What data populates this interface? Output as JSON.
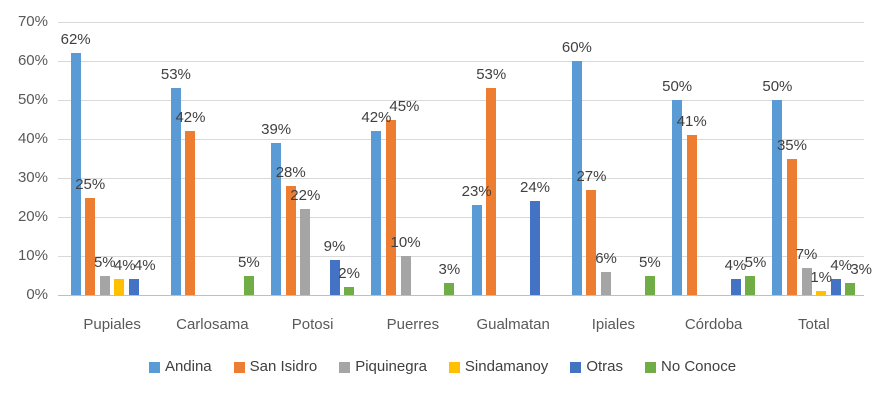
{
  "chart_data": {
    "type": "bar",
    "title": "",
    "xlabel": "",
    "ylabel": "",
    "categories": [
      "Pupiales",
      "Carlosama",
      "Potosi",
      "Puerres",
      "Gualmatan",
      "Ipiales",
      "Córdoba",
      "Total"
    ],
    "series": [
      {
        "name": "Andina",
        "color": "#5B9BD5",
        "values": [
          62,
          53,
          39,
          42,
          23,
          60,
          50,
          50
        ]
      },
      {
        "name": "San Isidro",
        "color": "#ED7D31",
        "values": [
          25,
          42,
          28,
          45,
          53,
          27,
          41,
          35
        ]
      },
      {
        "name": "Piquinegra",
        "color": "#A5A5A5",
        "values": [
          5,
          null,
          22,
          10,
          null,
          6,
          null,
          7
        ]
      },
      {
        "name": "Sindamanoy",
        "color": "#FFC000",
        "values": [
          4,
          null,
          null,
          null,
          null,
          null,
          null,
          1
        ]
      },
      {
        "name": "Otras",
        "color": "#4472C4",
        "values": [
          4,
          null,
          9,
          null,
          24,
          null,
          4,
          4
        ]
      },
      {
        "name": "No Conoce",
        "color": "#70AD47",
        "values": [
          null,
          5,
          2,
          3,
          null,
          5,
          5,
          3
        ]
      }
    ],
    "ylim": [
      0,
      70
    ],
    "ytick_step": 10,
    "yticks": [
      "0%",
      "10%",
      "20%",
      "30%",
      "40%",
      "50%",
      "60%",
      "70%"
    ],
    "value_suffix": "%",
    "data_labels": true,
    "grid": true,
    "legend_position": "bottom"
  },
  "colors": {
    "background": "#FFFFFF",
    "gridline": "#D9D9D9",
    "axis_line": "#BFBFBF",
    "axis_text": "#595959",
    "data_label_text": "#404040",
    "legend_text": "#404040"
  }
}
